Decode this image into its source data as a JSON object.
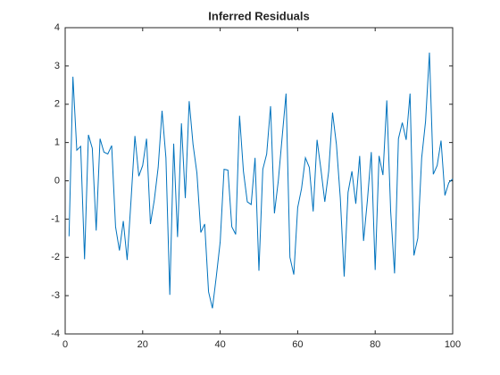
{
  "chart_data": {
    "type": "line",
    "title": "Inferred Residuals",
    "x": [
      1,
      2,
      3,
      4,
      5,
      6,
      7,
      8,
      9,
      10,
      11,
      12,
      13,
      14,
      15,
      16,
      17,
      18,
      19,
      20,
      21,
      22,
      23,
      24,
      25,
      26,
      27,
      28,
      29,
      30,
      31,
      32,
      33,
      34,
      35,
      36,
      37,
      38,
      39,
      40,
      41,
      42,
      43,
      44,
      45,
      46,
      47,
      48,
      49,
      50,
      51,
      52,
      53,
      54,
      55,
      56,
      57,
      58,
      59,
      60,
      61,
      62,
      63,
      64,
      65,
      66,
      67,
      68,
      69,
      70,
      71,
      72,
      73,
      74,
      75,
      76,
      77,
      78,
      79,
      80,
      81,
      82,
      83,
      84,
      85,
      86,
      87,
      88,
      89,
      90,
      91,
      92,
      93,
      94,
      95,
      96,
      97,
      98,
      99,
      100
    ],
    "series": [
      {
        "color": "#0072bd",
        "values": [
          -1.45,
          2.72,
          0.8,
          0.9,
          -2.05,
          1.2,
          0.85,
          -1.3,
          1.1,
          0.75,
          0.7,
          0.92,
          -1.2,
          -1.82,
          -1.05,
          -2.07,
          -0.5,
          1.17,
          0.12,
          0.4,
          1.1,
          -1.13,
          -0.5,
          0.35,
          1.83,
          0.6,
          -2.98,
          0.97,
          -1.47,
          1.5,
          -0.45,
          2.08,
          0.95,
          0.2,
          -1.35,
          -1.13,
          -2.9,
          -3.33,
          -2.5,
          -1.6,
          0.3,
          0.28,
          -1.2,
          -1.4,
          1.7,
          0.25,
          -0.55,
          -0.62,
          0.6,
          -2.35,
          0.3,
          0.7,
          1.95,
          -0.85,
          0.0,
          1.15,
          2.28,
          -2.0,
          -2.45,
          -0.7,
          -0.2,
          0.6,
          0.35,
          -0.8,
          1.07,
          0.3,
          -0.55,
          0.25,
          1.78,
          0.95,
          -0.45,
          -2.5,
          -0.3,
          0.25,
          -0.6,
          0.65,
          -1.57,
          -0.5,
          0.75,
          -2.33,
          0.65,
          0.15,
          2.1,
          -0.8,
          -2.42,
          1.1,
          1.52,
          1.07,
          2.28,
          -1.95,
          -1.5,
          0.6,
          1.55,
          3.35,
          0.17,
          0.4,
          1.05,
          -0.38,
          -0.05,
          0.05
        ]
      }
    ],
    "xlim": [
      0,
      100
    ],
    "xticks": [
      0,
      20,
      40,
      60,
      80,
      100
    ],
    "ylim": [
      -4,
      4
    ],
    "yticks": [
      -4,
      -3,
      -2,
      -1,
      0,
      1,
      2,
      3,
      4
    ]
  }
}
